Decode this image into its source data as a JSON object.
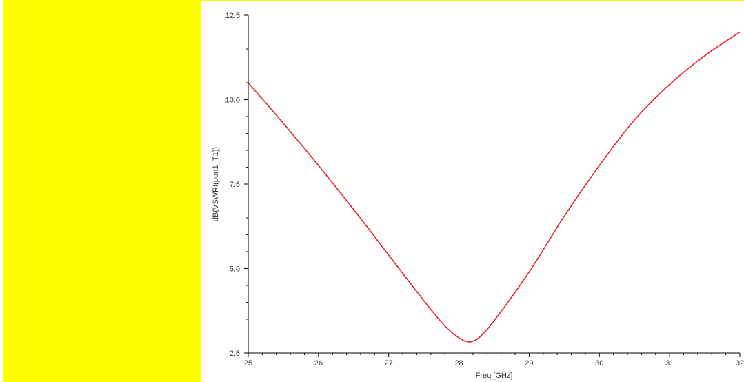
{
  "colors": {
    "panel": "#ffff00",
    "curve": "#e8202a",
    "axis": "#000000",
    "text": "#333333"
  },
  "chart_data": {
    "type": "line",
    "xlabel": "Freq [GHz]",
    "ylabel": "dB(VSWRt(port1_T1))",
    "xlim": [
      25,
      32
    ],
    "ylim": [
      2.5,
      12.5
    ],
    "xticks": [
      25,
      26,
      27,
      28,
      29,
      30,
      31,
      32
    ],
    "yticks": [
      2.5,
      5.0,
      7.5,
      10.0,
      12.5
    ],
    "ytick_labels": [
      "2.5",
      "5.0",
      "7.5",
      "10.0",
      "12.5"
    ],
    "grid": false,
    "series": [
      {
        "x": [
          25.0,
          25.5,
          26.0,
          26.5,
          27.0,
          27.5,
          27.8,
          28.0,
          28.1,
          28.15,
          28.2,
          28.3,
          28.5,
          29.0,
          29.5,
          30.0,
          30.5,
          31.0,
          31.5,
          32.0
        ],
        "y": [
          10.5,
          9.3,
          8.05,
          6.75,
          5.4,
          4.05,
          3.3,
          2.95,
          2.85,
          2.83,
          2.85,
          2.98,
          3.45,
          4.9,
          6.55,
          8.05,
          9.4,
          10.45,
          11.3,
          12.0
        ]
      }
    ]
  }
}
